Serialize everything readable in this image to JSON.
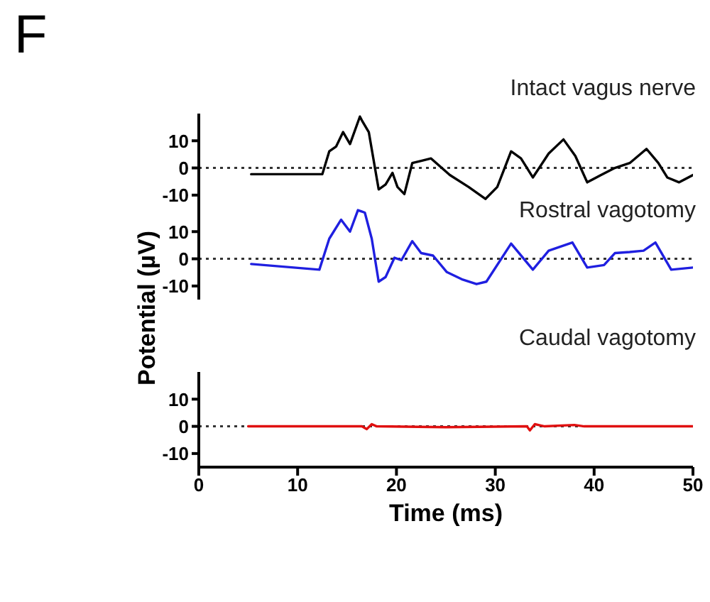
{
  "chart_data": [
    {
      "type": "line",
      "title": "Intact vagus nerve",
      "annotations": [
        "F"
      ],
      "tick_labels": "y",
      "xlim": [
        0,
        50
      ],
      "ylim": [
        -15,
        20
      ],
      "yticks": [
        -10,
        0,
        10
      ],
      "ref_lines": [
        {
          "axis": "y",
          "value": 0,
          "line_style": "dotted",
          "color": "#333333"
        }
      ],
      "x": [
        5.3,
        12.5,
        13.2,
        13.9,
        14.6,
        15.3,
        16.3,
        16.5,
        17.2,
        18.2,
        18.9,
        19.6,
        20.1,
        20.8,
        21.6,
        22.5,
        23.5,
        25.4,
        27.3,
        29.0,
        30.2,
        31.6,
        32.6,
        33.8,
        35.4,
        36.9,
        38.1,
        39.3,
        40.7,
        42.1,
        43.6,
        45.3,
        46.5,
        47.4,
        48.6,
        50
      ],
      "series": [
        {
          "color": "#000000",
          "values": [
            -2.3,
            -2.3,
            6.1,
            7.9,
            13.2,
            8.8,
            18.9,
            17.5,
            13.2,
            -7.9,
            -6.1,
            -1.8,
            -7,
            -9.6,
            1.8,
            2.6,
            3.5,
            -2.6,
            -7,
            -11.4,
            -7,
            6.1,
            3.5,
            -3.5,
            5.3,
            10.5,
            4.4,
            -5.3,
            -2.6,
            0,
            1.8,
            7,
            1.8,
            -3.5,
            -5.3,
            -2.6
          ]
        }
      ]
    },
    {
      "type": "line",
      "title": "Rostral vagotomy",
      "ylabel": "Potential (µV)",
      "tick_labels": "y",
      "xlim": [
        0,
        50
      ],
      "ylim": [
        -15,
        20
      ],
      "yticks": [
        -10,
        0,
        10
      ],
      "ref_lines": [
        {
          "axis": "y",
          "value": 0,
          "line_style": "dotted",
          "color": "#333333"
        }
      ],
      "x": [
        5.3,
        12.2,
        13.2,
        14.4,
        15.3,
        16.1,
        16.8,
        17.5,
        18.2,
        18.9,
        19.8,
        20.5,
        21.6,
        22.5,
        23.7,
        25.1,
        26.6,
        28.1,
        29.1,
        31.6,
        33.8,
        35.4,
        37.8,
        39.3,
        41,
        42.1,
        43.6,
        45,
        46.2,
        47.8,
        50
      ],
      "series": [
        {
          "color": "#1f1fe0",
          "values": [
            -1.9,
            -4,
            7.4,
            14.4,
            10,
            17.9,
            17,
            7.4,
            -8.4,
            -6.7,
            0.4,
            -0.5,
            6.5,
            2.1,
            1.2,
            -4.9,
            -7.5,
            -9.3,
            -8.4,
            5.6,
            -4,
            3,
            6,
            -3.2,
            -2.3,
            2.1,
            2.5,
            3,
            6,
            -4,
            -3.2
          ]
        }
      ]
    },
    {
      "type": "line",
      "title": "Caudal vagotomy",
      "xlabel": "Time (ms)",
      "xlim": [
        0,
        50
      ],
      "xticks": [
        0,
        10,
        20,
        30,
        40,
        50
      ],
      "ylim": [
        -15,
        20
      ],
      "yticks": [
        -10,
        0,
        10
      ],
      "ref_lines": [
        {
          "axis": "y",
          "value": 0,
          "line_style": "dotted",
          "color": "#333333"
        }
      ],
      "x": [
        5,
        16.5,
        17,
        17.5,
        18,
        25,
        33.2,
        33.5,
        34,
        35,
        38,
        39,
        50
      ],
      "series": [
        {
          "color": "#e01010",
          "values": [
            0,
            0,
            -1,
            0.8,
            0,
            -0.3,
            0,
            -1.5,
            0.8,
            0,
            0.5,
            0,
            0
          ]
        }
      ]
    }
  ]
}
